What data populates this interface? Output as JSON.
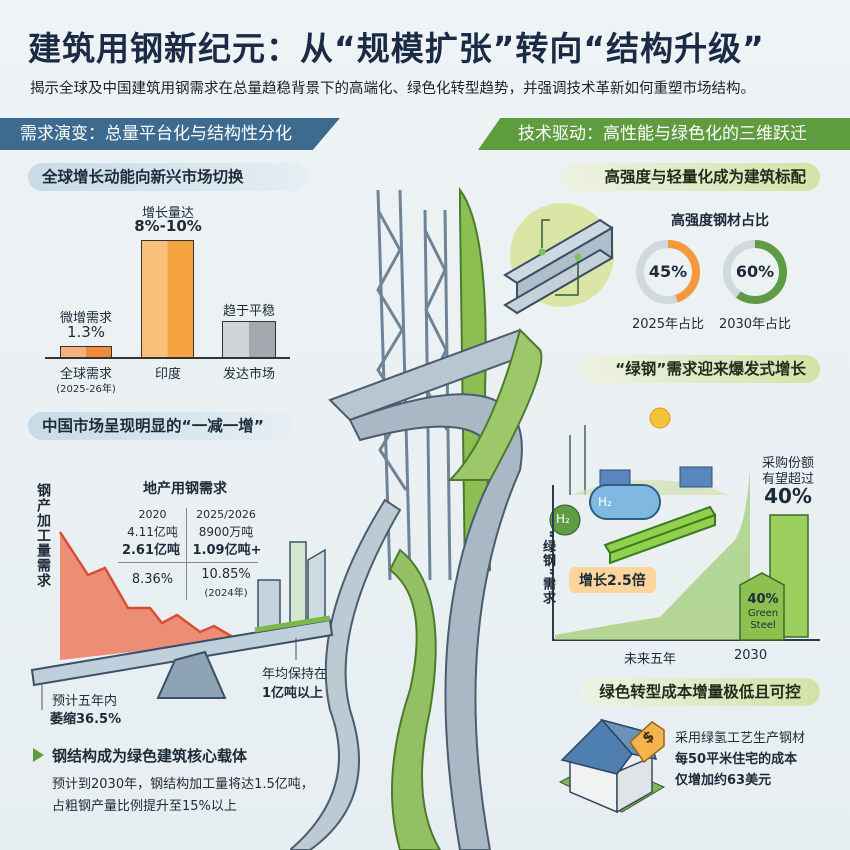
{
  "header": {
    "title": "建筑用钢新纪元：从“规模扩张”转向“结构升级”",
    "subtitle": "揭示全球及中国建筑用钢需求在总量趋稳背景下的高端化、绿色化转型趋势，并强调技术革新如何重塑市场结构。"
  },
  "left": {
    "banner": "需求演变：总量平台化与结构性分化",
    "global": {
      "heading": "全球增长动能向新兴市场切换",
      "bars": [
        {
          "top_label": "微增需求",
          "value_label": "1.3%",
          "name": "全球需求",
          "sub": "(2025-26年)",
          "color": "#f28a3c"
        },
        {
          "top_label": "增长量达",
          "value_label": "8%-10%",
          "name": "印度",
          "sub": "",
          "color": "#f6a040"
        },
        {
          "top_label": "趋于平稳",
          "value_label": "",
          "name": "发达市场",
          "sub": "",
          "color": "#a7adb2"
        }
      ]
    },
    "china": {
      "heading": "中国市场呈现明显的“一减一增”",
      "vertical_label": "钢产加工量需求",
      "table_title": "地产用钢需求",
      "col1": {
        "year": "2020",
        "r1": "4.11亿吨",
        "r2": "2.61亿吨",
        "r3": "8.36%",
        "r4": ""
      },
      "col2": {
        "year": "2025/2026",
        "r1": "8900万吨",
        "r2": "1.09亿吨+",
        "r3": "10.85%",
        "r4": "(2024年)"
      },
      "shrink_line1": "预计五年内",
      "shrink_line2": "萎缩36.5%",
      "keep_line1": "年均保持在",
      "keep_line2": "1亿吨以上",
      "area_color": "#e8684f"
    },
    "steel": {
      "heading": "钢结构成为绿色建筑核心载体",
      "line1": "预计到2030年，钢结构加工量将达1.5亿吨，",
      "line2": "占粗钢产量比例提升至15%以上"
    }
  },
  "right": {
    "banner": "技术驱动：高性能与绿色化的三维跃迁",
    "strength": {
      "heading": "高强度与轻量化成为建筑标配",
      "chart_title": "高强度钢材占比",
      "donuts": [
        {
          "value": 45,
          "label": "45%",
          "caption": "2025年占比",
          "color": "#f59a3c"
        },
        {
          "value": 60,
          "label": "60%",
          "caption": "2030年占比",
          "color": "#5f9b45"
        }
      ]
    },
    "green": {
      "heading": "“绿钢”需求迎来爆发式增长",
      "vertical_label": "“绿钢”需求",
      "callout": "增长2.5倍",
      "share_line1": "采购份额",
      "share_line2": "有望超过",
      "share_value": "40%",
      "building_pct": "40%",
      "building_line1": "Green",
      "building_line2": "Steel",
      "x_label1": "未来五年",
      "x_label2": "2030",
      "h2a": "H₂",
      "h2b": "H₂"
    },
    "cost": {
      "heading": "绿色转型成本增量极低且可控",
      "line1": "采用绿氢工艺生产钢材",
      "line2": "每50平米住宅的成本",
      "line3": "仅增加约63美元",
      "tag_symbol": "$"
    }
  }
}
